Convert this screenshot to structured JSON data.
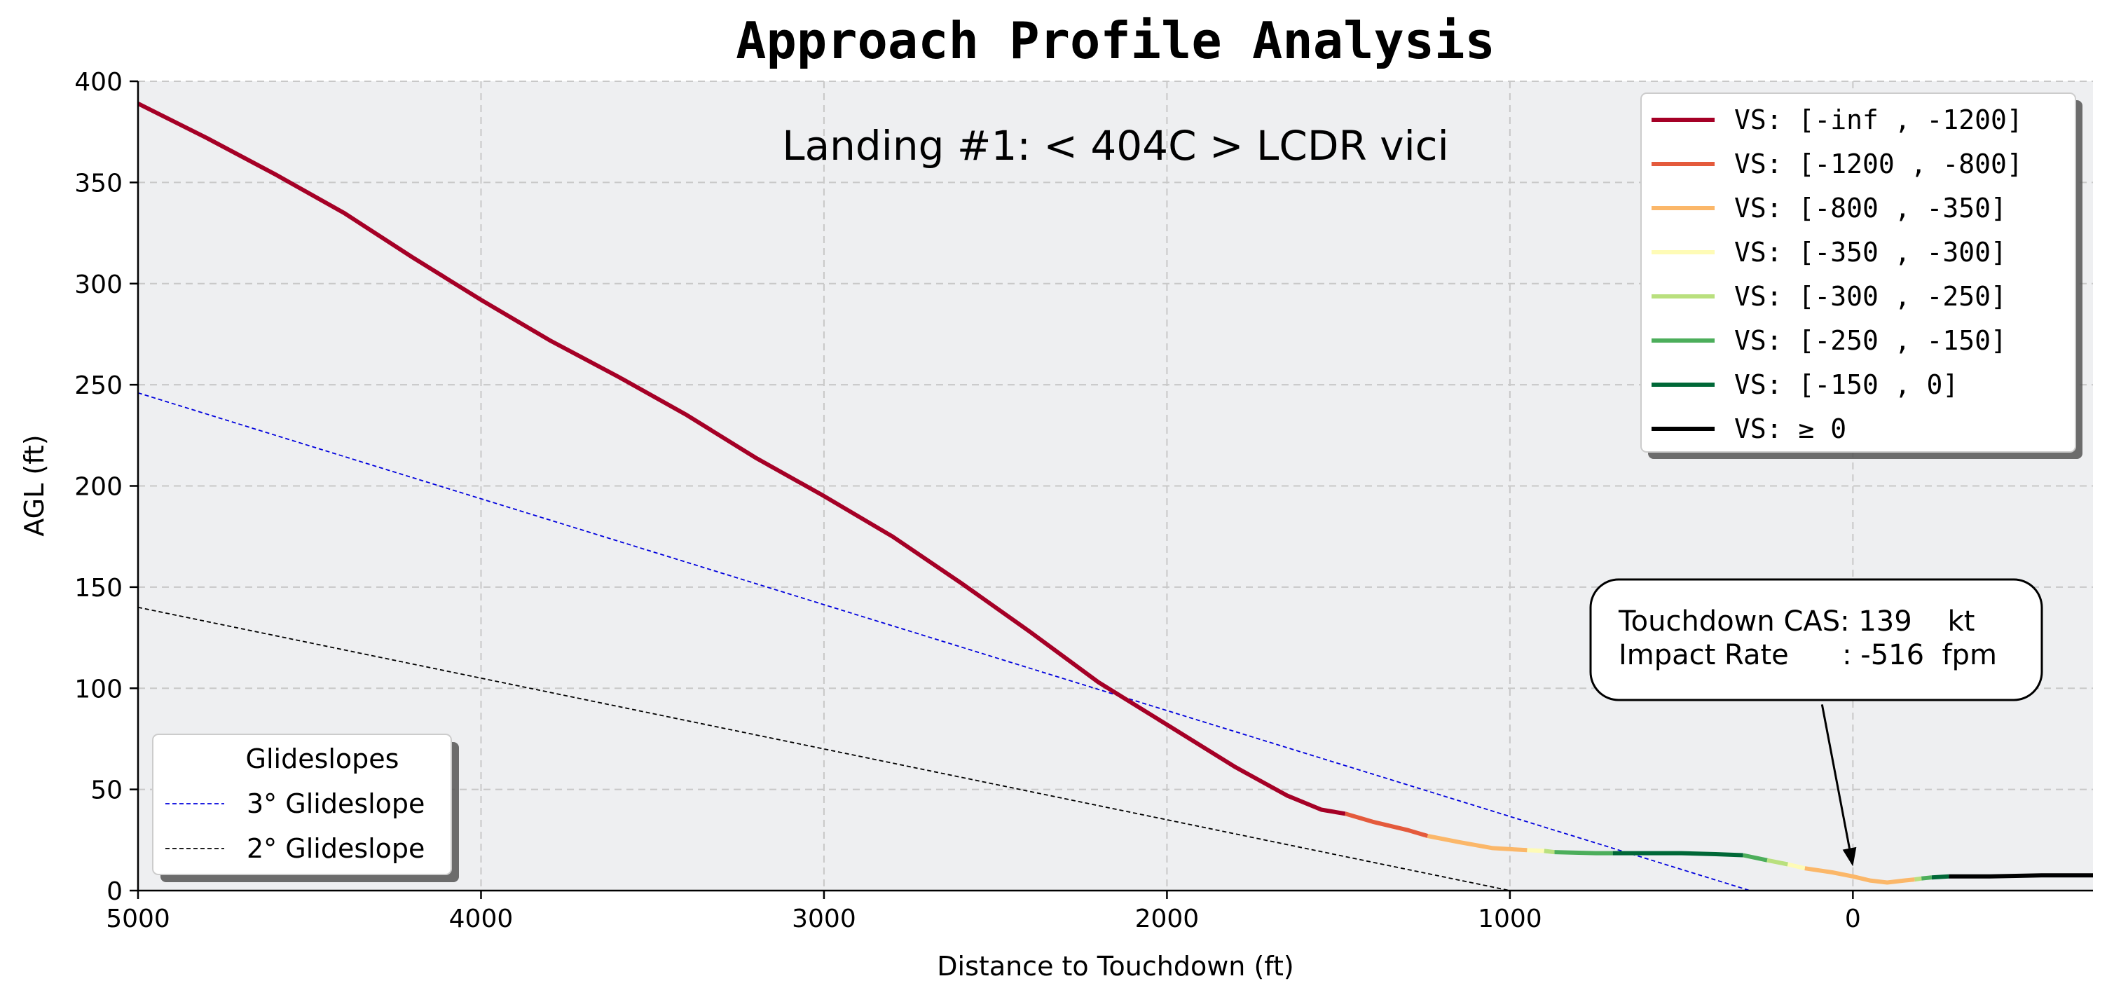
{
  "chart_data": {
    "type": "line",
    "title": "Approach Profile Analysis",
    "subtitle": "Landing #1: < 404C > LCDR vici",
    "xlabel": "Distance to Touchdown (ft)",
    "ylabel": "AGL (ft)",
    "xlim": [
      5000,
      -700
    ],
    "ylim": [
      0,
      400
    ],
    "x_reversed": true,
    "grid": true,
    "x_ticks": [
      5000,
      4000,
      3000,
      2000,
      1000,
      0
    ],
    "y_ticks": [
      0,
      50,
      100,
      150,
      200,
      250,
      300,
      350,
      400
    ],
    "legend_vs": {
      "placement": "top-right",
      "entries": [
        {
          "label": "VS: [-inf  , -1200]",
          "color": "#a50026"
        },
        {
          "label": "VS: [-1200 ,  -800]",
          "color": "#e45a3c"
        },
        {
          "label": "VS: [-800  ,  -350]",
          "color": "#fbb769"
        },
        {
          "label": "VS: [-350  ,  -300]",
          "color": "#fefbb6"
        },
        {
          "label": "VS: [-300  ,  -250]",
          "color": "#b9e07e"
        },
        {
          "label": "VS: [-250  ,  -150]",
          "color": "#4cae5b"
        },
        {
          "label": "VS: [-150  ,     0]",
          "color": "#006837"
        },
        {
          "label": "VS: ≥ 0",
          "color": "#000000"
        }
      ]
    },
    "legend_glideslopes": {
      "title": "Glideslopes",
      "placement": "lower-left",
      "entries": [
        {
          "label": "3° Glideslope",
          "color": "#0000dd"
        },
        {
          "label": "2° Glideslope",
          "color": "#000000"
        }
      ]
    },
    "annotation": {
      "line1": "Touchdown CAS: 139    kt",
      "line2": "Impact Rate      : -516  fpm",
      "arrow_tail": [
        90,
        92
      ],
      "arrow_head": [
        0,
        12
      ]
    },
    "glideslopes": [
      {
        "name": "3° Glideslope",
        "color": "#0000dd",
        "points": [
          [
            5000,
            246
          ],
          [
            300,
            0
          ]
        ]
      },
      {
        "name": "2° Glideslope",
        "color": "#000000",
        "points": [
          [
            5000,
            140
          ],
          [
            1000,
            0
          ]
        ]
      }
    ],
    "series": [
      {
        "color": "#a50026",
        "points": [
          [
            5000,
            389
          ],
          [
            4800,
            372
          ],
          [
            4600,
            354
          ],
          [
            4400,
            335
          ],
          [
            4200,
            313
          ],
          [
            4000,
            292
          ],
          [
            3800,
            272
          ],
          [
            3600,
            254
          ],
          [
            3400,
            235
          ],
          [
            3200,
            214
          ],
          [
            3000,
            195
          ],
          [
            2800,
            175
          ],
          [
            2600,
            152
          ],
          [
            2400,
            128
          ],
          [
            2200,
            103
          ],
          [
            2000,
            82
          ],
          [
            1800,
            61
          ],
          [
            1650,
            47
          ],
          [
            1550,
            40
          ],
          [
            1480,
            38
          ]
        ]
      },
      {
        "color": "#e45a3c",
        "points": [
          [
            1480,
            38
          ],
          [
            1400,
            34
          ],
          [
            1300,
            30
          ],
          [
            1240,
            27
          ]
        ]
      },
      {
        "color": "#fbb769",
        "points": [
          [
            1240,
            27
          ],
          [
            1150,
            24
          ],
          [
            1050,
            21
          ],
          [
            950,
            20
          ]
        ]
      },
      {
        "color": "#fefbb6",
        "points": [
          [
            950,
            20
          ],
          [
            900,
            19.6
          ]
        ]
      },
      {
        "color": "#b9e07e",
        "points": [
          [
            900,
            19.6
          ],
          [
            870,
            19
          ]
        ]
      },
      {
        "color": "#4cae5b",
        "points": [
          [
            870,
            19
          ],
          [
            750,
            18.5
          ],
          [
            700,
            18.5
          ]
        ]
      },
      {
        "color": "#006837",
        "points": [
          [
            700,
            18.5
          ],
          [
            600,
            18.5
          ],
          [
            500,
            18.5
          ],
          [
            400,
            18
          ],
          [
            320,
            17.5
          ]
        ]
      },
      {
        "color": "#4cae5b",
        "points": [
          [
            320,
            17.5
          ],
          [
            250,
            15
          ]
        ]
      },
      {
        "color": "#b9e07e",
        "points": [
          [
            250,
            15
          ],
          [
            190,
            13
          ]
        ]
      },
      {
        "color": "#fefbb6",
        "points": [
          [
            190,
            13
          ],
          [
            140,
            11
          ]
        ]
      },
      {
        "color": "#fbb769",
        "points": [
          [
            140,
            11
          ],
          [
            60,
            9
          ],
          [
            0,
            7
          ],
          [
            -50,
            5
          ],
          [
            -100,
            4
          ],
          [
            -150,
            5
          ],
          [
            -180,
            5.5
          ]
        ]
      },
      {
        "color": "#b9e07e",
        "points": [
          [
            -180,
            5.5
          ],
          [
            -200,
            6
          ]
        ]
      },
      {
        "color": "#4cae5b",
        "points": [
          [
            -200,
            6
          ],
          [
            -230,
            6.5
          ]
        ]
      },
      {
        "color": "#006837",
        "points": [
          [
            -230,
            6.5
          ],
          [
            -280,
            7
          ]
        ]
      },
      {
        "color": "#000000",
        "points": [
          [
            -280,
            7
          ],
          [
            -400,
            7
          ],
          [
            -550,
            7.5
          ],
          [
            -700,
            7.5
          ]
        ]
      }
    ]
  }
}
